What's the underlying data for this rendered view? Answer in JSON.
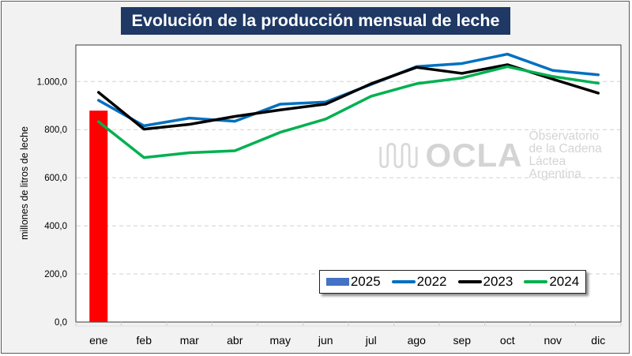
{
  "chart_data": {
    "type": "bar+line",
    "title": "Evolución de la producción mensual de leche",
    "xlabel": "",
    "ylabel": "millones de litros de leche",
    "ylim": [
      0,
      1200
    ],
    "yticks": [
      0,
      200,
      400,
      600,
      800,
      1000
    ],
    "ytick_labels": [
      "0,0",
      "200,0",
      "400,0",
      "600,0",
      "800,0",
      "1.000,0"
    ],
    "grid": true,
    "categories": [
      "ene",
      "feb",
      "mar",
      "abr",
      "may",
      "jun",
      "jul",
      "ago",
      "sep",
      "oct",
      "nov",
      "dic"
    ],
    "legend_position": "bottom-right",
    "series": [
      {
        "name": "2025",
        "type": "bar",
        "color": "#ff0000",
        "legend_color": "#4472c4",
        "values": [
          879,
          null,
          null,
          null,
          null,
          null,
          null,
          null,
          null,
          null,
          null,
          null
        ]
      },
      {
        "name": "2022",
        "type": "line",
        "color": "#0070c0",
        "values": [
          922,
          816,
          848,
          835,
          906,
          915,
          988,
          1062,
          1075,
          1114,
          1046,
          1028
        ]
      },
      {
        "name": "2023",
        "type": "line",
        "color": "#000000",
        "values": [
          955,
          802,
          822,
          855,
          882,
          906,
          991,
          1059,
          1034,
          1070,
          1010,
          952
        ]
      },
      {
        "name": "2024",
        "type": "line",
        "color": "#00b050",
        "values": [
          833,
          684,
          704,
          712,
          789,
          844,
          939,
          991,
          1015,
          1062,
          1021,
          993
        ]
      }
    ]
  },
  "watermark": {
    "brand": "OCLA",
    "lines": [
      "Observatorio",
      "de la Cadena Láctea",
      "Argentina"
    ]
  }
}
